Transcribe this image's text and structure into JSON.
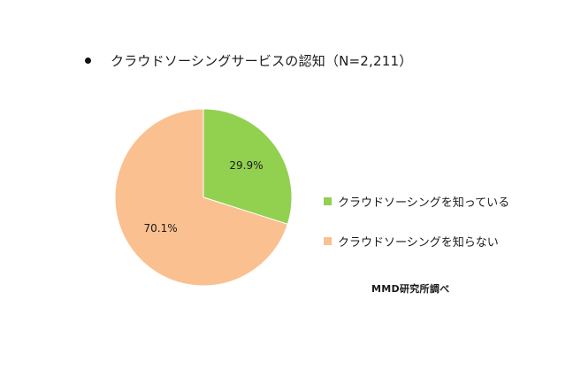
{
  "title": "クラウドソーシングサービスの認知（N=2,211）",
  "source": "MMD研究所調べ",
  "chart_data": {
    "type": "pie",
    "title": "クラウドソーシングサービスの認知（N=2,211）",
    "slices": [
      {
        "label": "クラウドソーシングを知っている",
        "value": 29.9,
        "display": "29.9%",
        "color": "#92d050"
      },
      {
        "label": "クラウドソーシングを知らない",
        "value": 70.1,
        "display": "70.1%",
        "color": "#fac090"
      }
    ],
    "legend_position": "right"
  }
}
